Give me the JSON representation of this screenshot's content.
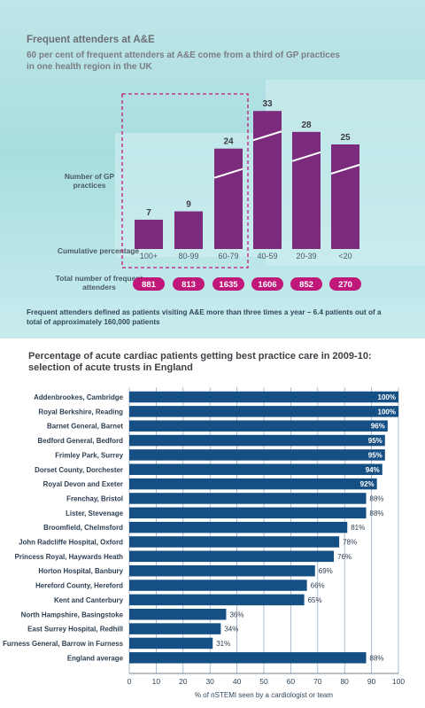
{
  "colors": {
    "bar_purple": "#7b2a7c",
    "pill_pink": "#c0187a",
    "dashed_box": "#c2187a",
    "cumulative_line": "#ffffff",
    "hbar_blue": "#154f84",
    "grid": "#9aaec2"
  },
  "top": {
    "title": "Frequent attenders at A&E",
    "subtitle": "60 per cent of frequent attenders at A&E come from a third of GP practices in one health region in the UK",
    "gp_label": "Number of GP practices",
    "cumulative_label": "Cumulative percentage",
    "total_label": "Total number of frequent attenders",
    "footnote": "Frequent attenders defined as patients visiting A&E more than three times a year – 6.4 patients out of a total of approximately 160,000 patients"
  },
  "bottom": {
    "title": "Percentage of acute cardiac patients getting best practice care in 2009-10: selection of acute trusts in England"
  },
  "chart_data": [
    {
      "type": "bar",
      "title": "Frequent attenders at A&E",
      "subtitle": "60 per cent of frequent attenders at A&E come from a third of GP practices in one health region in the UK",
      "categories": [
        "100+",
        "80-99",
        "60-79",
        "40-59",
        "20-39",
        "<20"
      ],
      "series": [
        {
          "name": "Number of GP practices",
          "values": [
            7,
            9,
            24,
            33,
            28,
            25
          ]
        },
        {
          "name": "Total number of frequent attenders",
          "values": [
            881,
            813,
            1635,
            1606,
            852,
            270
          ]
        }
      ],
      "xlabel": "Cumulative percentage",
      "ylabel": "Number of GP practices",
      "highlighted_categories": [
        "100+",
        "80-99",
        "60-79"
      ]
    },
    {
      "type": "bar",
      "orientation": "horizontal",
      "title": "Percentage of acute cardiac patients getting best practice care in 2009-10: selection of acute trusts in England",
      "categories": [
        "Addenbrookes, Cambridge",
        "Royal Berkshire, Reading",
        "Barnet General, Barnet",
        "Bedford General, Bedford",
        "Frimley Park, Surrey",
        "Dorset County, Dorchester",
        "Royal Devon and Exeter",
        "Frenchay, Bristol",
        "Lister, Stevenage",
        "Broomfield, Chelmsford",
        "John Radcliffe Hospital, Oxford",
        "Princess Royal, Haywards Heath",
        "Horton Hospital, Banbury",
        "Hereford County, Hereford",
        "Kent and Canterbury",
        "North Hampshire, Basingstoke",
        "East Surrey Hospital, Redhill",
        "Furness General, Barrow in Furness",
        "England average"
      ],
      "values": [
        100,
        100,
        96,
        95,
        95,
        94,
        92,
        88,
        88,
        81,
        78,
        76,
        69,
        66,
        65,
        36,
        34,
        31,
        88
      ],
      "value_labels": [
        "100%",
        "100%",
        "96%",
        "95%",
        "95%",
        "94%",
        "92%",
        "88%",
        "88%",
        "81%",
        "78%",
        "76%",
        "69%",
        "66%",
        "65%",
        "36%",
        "34%",
        "31%",
        "88%"
      ],
      "xlabel": "% of nSTEMI seen by a cardiologist or team",
      "xlim": [
        0,
        100
      ],
      "xticks": [
        "0",
        "10",
        "20",
        "30",
        "40",
        "50",
        "60",
        "70",
        "80",
        "90",
        "100"
      ],
      "grid": true
    }
  ]
}
